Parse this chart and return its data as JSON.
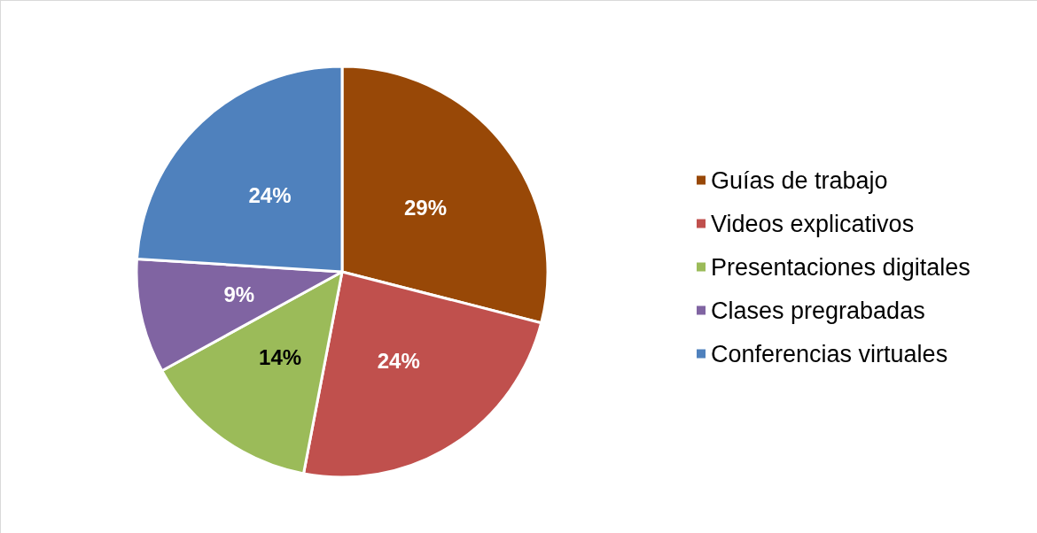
{
  "chart_data": {
    "type": "pie",
    "categories": [
      "Guías de trabajo",
      "Videos explicativos",
      "Presentaciones digitales",
      "Clases pregrabadas",
      "Conferencias virtuales"
    ],
    "values": [
      29,
      24,
      14,
      9,
      24
    ],
    "colors": [
      "#984807",
      "#c0504d",
      "#9bbb59",
      "#8064a2",
      "#4f81bd"
    ],
    "value_labels": [
      "29%",
      "24%",
      "14%",
      "9%",
      "24%"
    ],
    "legend": "right"
  }
}
